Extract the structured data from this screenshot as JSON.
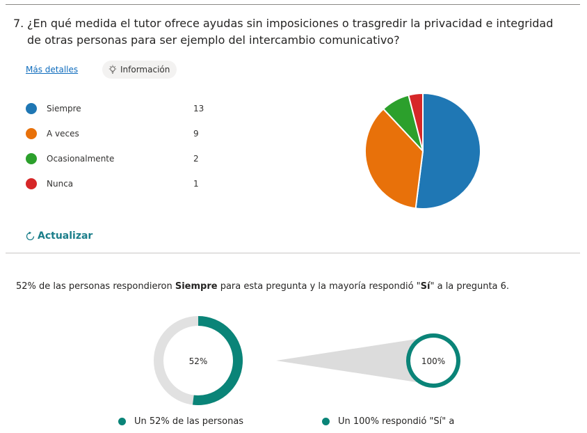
{
  "question": {
    "number": "7.",
    "text": "¿En qué medida el tutor ofrece ayudas sin imposiciones o trasgredir la privacidad e integridad de otras personas para ser ejemplo del intercambio comunicativo?"
  },
  "links": {
    "more_details": "Más detalles",
    "info": "Información",
    "refresh": "Actualizar"
  },
  "chart_data": {
    "type": "pie",
    "categories": [
      "Siempre",
      "A veces",
      "Ocasionalmente",
      "Nunca"
    ],
    "values": [
      13,
      9,
      2,
      1
    ],
    "colors": [
      "#1f77b4",
      "#e8710a",
      "#2ca02c",
      "#d62728"
    ]
  },
  "insight": {
    "pre": "52% de las personas respondieron ",
    "bold1": "Siempre",
    "mid": " para esta pregunta y la mayoría respondió \"",
    "bold2": "Sí",
    "post": "\" a la pregunta 6."
  },
  "donuts": {
    "left": {
      "label": "52%",
      "value": 52
    },
    "right": {
      "label": "100%",
      "value": 100
    },
    "accent": "#0a8478",
    "track": "#e1e1e1"
  },
  "footer": {
    "left": "Un 52% de las personas",
    "right": "Un 100% respondió \"Sí\" a"
  }
}
